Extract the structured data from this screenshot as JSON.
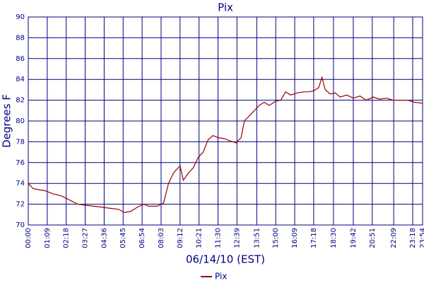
{
  "chart_data": {
    "type": "line",
    "title": "Pix",
    "x_label": "06/14/10 (EST)",
    "y_label": "Degrees F",
    "x": [
      0,
      0.3,
      0.6,
      1,
      1.5,
      2,
      2.5,
      3,
      3.5,
      4,
      4.5,
      5,
      5.5,
      5.8,
      6.2,
      6.6,
      7,
      7.3,
      7.8,
      8.2,
      8.5,
      8.8,
      9.2,
      9.4,
      9.7,
      10,
      10.3,
      10.6,
      10.9,
      11.2,
      11.5,
      11.9,
      12.2,
      12.6,
      12.9,
      13.1,
      13.4,
      13.7,
      14,
      14.3,
      14.6,
      15,
      15.3,
      15.6,
      15.9,
      16.3,
      16.7,
      17,
      17.3,
      17.6,
      17.8,
      18,
      18.3,
      18.6,
      18.9,
      19.3,
      19.7,
      20.1,
      20.5,
      20.9,
      21.3,
      21.7,
      22.1,
      22.6,
      23,
      23.4,
      23.9
    ],
    "series": [
      {
        "name": "Pix",
        "color": "#990000",
        "values": [
          74.0,
          73.5,
          73.4,
          73.3,
          73.0,
          72.8,
          72.4,
          72.0,
          71.9,
          71.8,
          71.7,
          71.6,
          71.5,
          71.2,
          71.3,
          71.7,
          72.0,
          71.8,
          71.8,
          72.1,
          74.0,
          75.0,
          75.7,
          74.3,
          75.0,
          75.5,
          76.5,
          77.0,
          78.2,
          78.6,
          78.4,
          78.3,
          78.1,
          77.9,
          78.4,
          80.0,
          80.5,
          81.0,
          81.5,
          81.8,
          81.5,
          81.9,
          82.0,
          82.8,
          82.5,
          82.7,
          82.8,
          82.8,
          82.9,
          83.2,
          84.2,
          83.0,
          82.6,
          82.7,
          82.3,
          82.5,
          82.2,
          82.4,
          82.0,
          82.3,
          82.1,
          82.2,
          82.0,
          82.0,
          82.0,
          81.8,
          81.7
        ]
      }
    ],
    "xlim": [
      0,
      23.9
    ],
    "xticks": [
      {
        "value": 0,
        "label": "00:00"
      },
      {
        "value": 1.15,
        "label": "01:09"
      },
      {
        "value": 2.3,
        "label": "02:18"
      },
      {
        "value": 3.45,
        "label": "03:27"
      },
      {
        "value": 4.6,
        "label": "04:36"
      },
      {
        "value": 5.75,
        "label": "05:45"
      },
      {
        "value": 6.9,
        "label": "06:54"
      },
      {
        "value": 8.05,
        "label": "08:03"
      },
      {
        "value": 9.2,
        "label": "09:12"
      },
      {
        "value": 10.35,
        "label": "10:21"
      },
      {
        "value": 11.5,
        "label": "11:30"
      },
      {
        "value": 12.65,
        "label": "12:39"
      },
      {
        "value": 13.85,
        "label": "13:51"
      },
      {
        "value": 15,
        "label": "15:00"
      },
      {
        "value": 16.15,
        "label": "16:09"
      },
      {
        "value": 17.3,
        "label": "17:18"
      },
      {
        "value": 18.5,
        "label": "18:30"
      },
      {
        "value": 19.7,
        "label": "19:42"
      },
      {
        "value": 20.85,
        "label": "20:51"
      },
      {
        "value": 22.15,
        "label": "22:09"
      },
      {
        "value": 23.3,
        "label": "23:18"
      },
      {
        "value": 23.9,
        "label": "23:54"
      }
    ],
    "ylim": [
      70,
      90
    ],
    "yticks": [
      70,
      72,
      74,
      76,
      78,
      80,
      82,
      84,
      86,
      88,
      90
    ],
    "grid": true,
    "legend": "bottom"
  }
}
